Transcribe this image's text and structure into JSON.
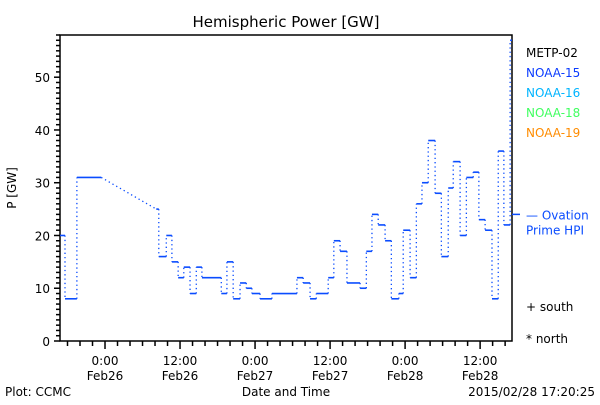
{
  "chart_data": {
    "type": "line",
    "title": "Hemispheric Power [GW]",
    "xlabel": "Date and Time",
    "ylabel": "P [GW]",
    "x_units": "hours since 2015/02/26 00:00",
    "xlim": [
      -7.2,
      65.1
    ],
    "ylim": [
      0,
      58
    ],
    "y_ticks": [
      0,
      10,
      20,
      30,
      40,
      50
    ],
    "x_ticks": [
      {
        "h": 0,
        "time": "0:00",
        "date": "Feb26"
      },
      {
        "h": 12,
        "time": "12:00",
        "date": "Feb26"
      },
      {
        "h": 24,
        "time": "0:00",
        "date": "Feb27"
      },
      {
        "h": 36,
        "time": "12:00",
        "date": "Feb27"
      },
      {
        "h": 48,
        "time": "0:00",
        "date": "Feb28"
      },
      {
        "h": 60,
        "time": "12:00",
        "date": "Feb28"
      }
    ],
    "series": [
      {
        "name": "NOAA-15",
        "color": "#0a4cff",
        "segments": [
          [
            -7.2,
            -6.4,
            20
          ],
          [
            -6.4,
            -4.5,
            8
          ],
          [
            -4.5,
            -0.6,
            31
          ],
          [
            8.2,
            8.6,
            25
          ],
          [
            8.6,
            9.8,
            16
          ],
          [
            9.8,
            10.7,
            20
          ],
          [
            10.7,
            11.7,
            15
          ],
          [
            11.7,
            12.6,
            12
          ],
          [
            12.6,
            13.6,
            14
          ],
          [
            13.6,
            14.6,
            9
          ],
          [
            14.6,
            15.5,
            14
          ],
          [
            15.5,
            18.6,
            12
          ],
          [
            18.6,
            19.5,
            9
          ],
          [
            19.5,
            20.5,
            15
          ],
          [
            20.5,
            21.6,
            8
          ],
          [
            21.6,
            22.6,
            11
          ],
          [
            22.6,
            23.5,
            10
          ],
          [
            23.5,
            24.8,
            9
          ],
          [
            24.8,
            26.7,
            8
          ],
          [
            26.7,
            30.7,
            9
          ],
          [
            30.7,
            31.7,
            12
          ],
          [
            31.7,
            32.8,
            11
          ],
          [
            32.8,
            33.8,
            8
          ],
          [
            33.8,
            35.7,
            9
          ],
          [
            35.7,
            36.6,
            12
          ],
          [
            36.6,
            37.6,
            19
          ],
          [
            37.6,
            38.7,
            17
          ],
          [
            38.7,
            40.8,
            11
          ],
          [
            40.8,
            41.8,
            10
          ],
          [
            41.8,
            42.7,
            17
          ],
          [
            42.7,
            43.7,
            24
          ],
          [
            43.7,
            44.8,
            22
          ],
          [
            44.8,
            45.8,
            19
          ],
          [
            45.8,
            47.0,
            8
          ],
          [
            47.0,
            47.7,
            9
          ],
          [
            47.7,
            48.8,
            21
          ],
          [
            48.8,
            49.8,
            12
          ],
          [
            49.8,
            50.7,
            26
          ],
          [
            50.7,
            51.7,
            30
          ],
          [
            51.7,
            52.8,
            38
          ],
          [
            52.8,
            53.8,
            28
          ],
          [
            53.8,
            54.9,
            16
          ],
          [
            54.9,
            55.7,
            29
          ],
          [
            55.7,
            56.8,
            34
          ],
          [
            56.8,
            57.8,
            20
          ],
          [
            57.8,
            58.9,
            31
          ],
          [
            58.9,
            59.8,
            32
          ],
          [
            59.8,
            60.8,
            23
          ],
          [
            60.8,
            61.9,
            21
          ],
          [
            61.9,
            62.9,
            8
          ],
          [
            62.9,
            63.8,
            36
          ],
          [
            63.8,
            64.8,
            22
          ],
          [
            64.8,
            65.1,
            57
          ]
        ]
      }
    ],
    "legend": [
      {
        "label": "METP-02",
        "color": "#000000"
      },
      {
        "label": "NOAA-15",
        "color": "#0a3cff"
      },
      {
        "label": "NOAA-16",
        "color": "#00b4ff"
      },
      {
        "label": "NOAA-18",
        "color": "#40ff60"
      },
      {
        "label": "NOAA-19",
        "color": "#ff8c00"
      }
    ],
    "ovation": {
      "label1": "— Ovation",
      "label2": "Prime HPI",
      "value": 24,
      "color": "#0a4cff"
    },
    "hemisphere_legend": {
      "south": "+ south",
      "north": "* north"
    }
  },
  "footer": {
    "plot_by": "Plot: CCMC",
    "timestamp": "2015/02/28 17:20:25"
  }
}
